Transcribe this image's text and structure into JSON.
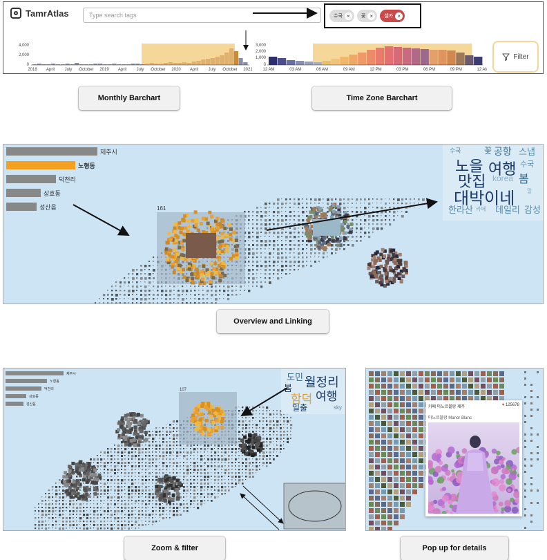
{
  "app": {
    "name": "TamrAtlas",
    "search_placeholder": "Type search tags",
    "tags": [
      {
        "label": "수국",
        "active": false
      },
      {
        "label": "꽃",
        "active": false
      },
      {
        "label": "셀카",
        "active": true
      }
    ],
    "filter_label": "Filter"
  },
  "monthly_chart": {
    "y_ticks": [
      "4,000",
      "2,000",
      "0"
    ],
    "x_ticks": [
      "2018",
      "April",
      "July",
      "October",
      "2019",
      "April",
      "July",
      "October",
      "2020",
      "April",
      "July",
      "October",
      "2021"
    ]
  },
  "timezone_chart": {
    "y_ticks": [
      "3,000",
      "2,000",
      "1,000",
      "0"
    ],
    "x_ticks": [
      "12 AM",
      "03 AM",
      "06 AM",
      "09 AM",
      "12 PM",
      "03 PM",
      "06 PM",
      "09 PM",
      "12 AM"
    ]
  },
  "captions": {
    "monthly": "Monthly Barchart",
    "timezone": "Time Zone Barchart",
    "overview": "Overview and Linking",
    "zoom": "Zoom & filter",
    "popup": "Pop up for details"
  },
  "overview": {
    "bars": [
      {
        "label": "제주시",
        "highlight": false
      },
      {
        "label": "노형동",
        "highlight": true
      },
      {
        "label": "덕천리",
        "highlight": false
      },
      {
        "label": "상효동",
        "highlight": false
      },
      {
        "label": "성산읍",
        "highlight": false
      }
    ],
    "cluster_count": "161",
    "wordcloud": [
      "수국",
      "꽃",
      "공항",
      "스냅",
      "노을",
      "여행",
      "수국",
      "맛집",
      "봄",
      "korea",
      "대박이네",
      "말",
      "한라산",
      "카페",
      "데일리",
      "감성"
    ]
  },
  "zoom": {
    "bars": [
      {
        "label": "제주시"
      },
      {
        "label": "노형동"
      },
      {
        "label": "덕천리"
      },
      {
        "label": "상효동"
      },
      {
        "label": "성산읍"
      }
    ],
    "cluster_count": "107",
    "wordcloud": [
      "도민",
      "월정리",
      "봄",
      "함덕",
      "여행",
      "일출",
      "sky"
    ]
  },
  "popup": {
    "title": "카페 마노르블랑 제주",
    "likes": "125678",
    "subtitle": "마노르블랑 Manor Blanc"
  },
  "colors": {
    "accent": "#f4a020",
    "map_bg": "#cde4f5",
    "tag_active": "#c94a4a"
  }
}
